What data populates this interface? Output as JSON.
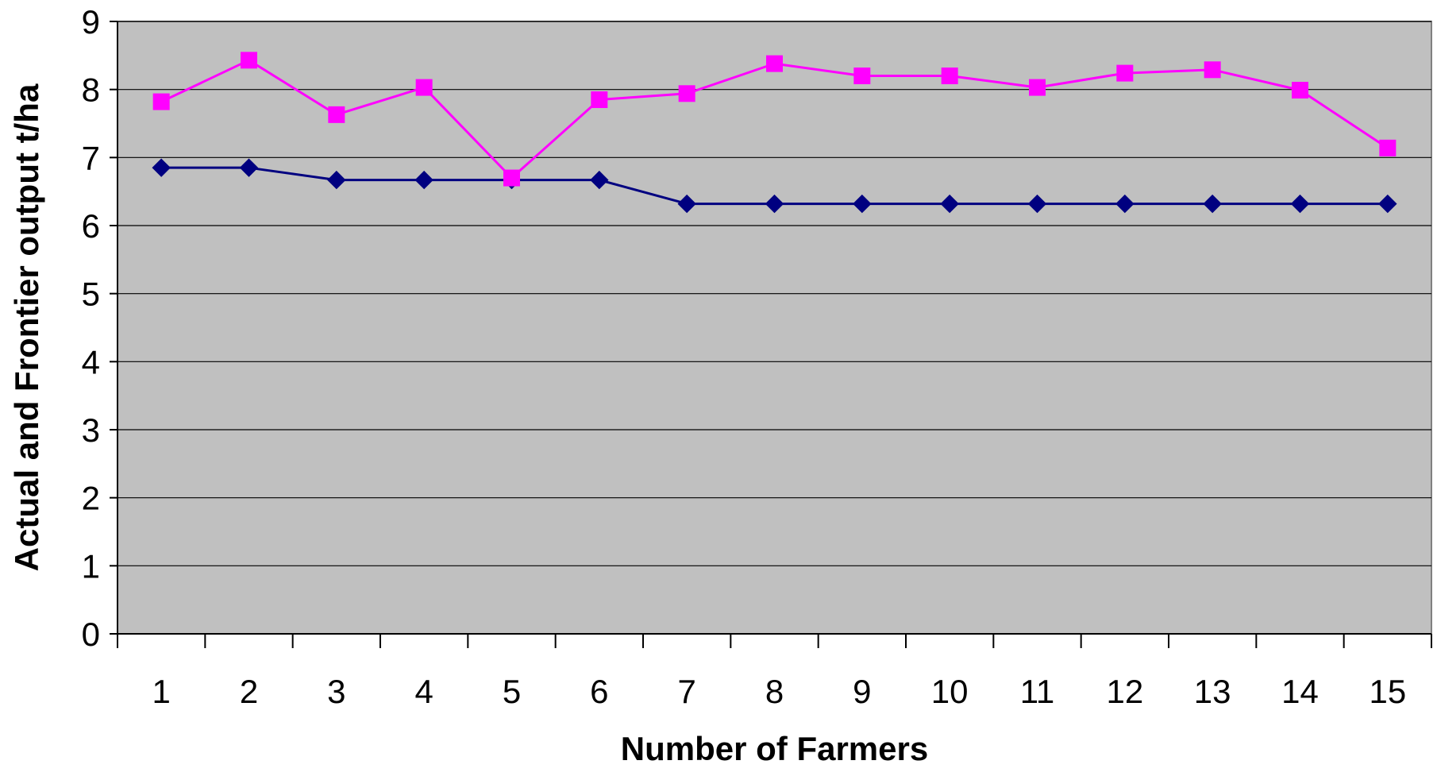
{
  "chart_data": {
    "type": "line",
    "title": "",
    "xlabel": "Number of Farmers",
    "ylabel": "Actual and Frontier output t/ha",
    "categories": [
      "1",
      "2",
      "3",
      "4",
      "5",
      "6",
      "7",
      "8",
      "9",
      "10",
      "11",
      "12",
      "13",
      "14",
      "15"
    ],
    "ylim": [
      0,
      9
    ],
    "yticks": [
      "0",
      "1",
      "2",
      "3",
      "4",
      "5",
      "6",
      "7",
      "8",
      "9"
    ],
    "grid": true,
    "legend": "none",
    "series": [
      {
        "marker": "diamond",
        "color": "#000080",
        "values": [
          6.85,
          6.85,
          6.67,
          6.67,
          6.67,
          6.67,
          6.32,
          6.32,
          6.32,
          6.32,
          6.32,
          6.32,
          6.32,
          6.32,
          6.32
        ]
      },
      {
        "marker": "square",
        "color": "#ff00ff",
        "values": [
          7.82,
          8.43,
          7.63,
          8.03,
          6.7,
          7.85,
          7.94,
          8.38,
          8.2,
          8.2,
          8.03,
          8.24,
          8.29,
          7.99,
          7.14
        ]
      }
    ],
    "colors": {
      "plot_background": "#c0c0c0",
      "gridline": "#000000",
      "axis": "#000000"
    }
  }
}
